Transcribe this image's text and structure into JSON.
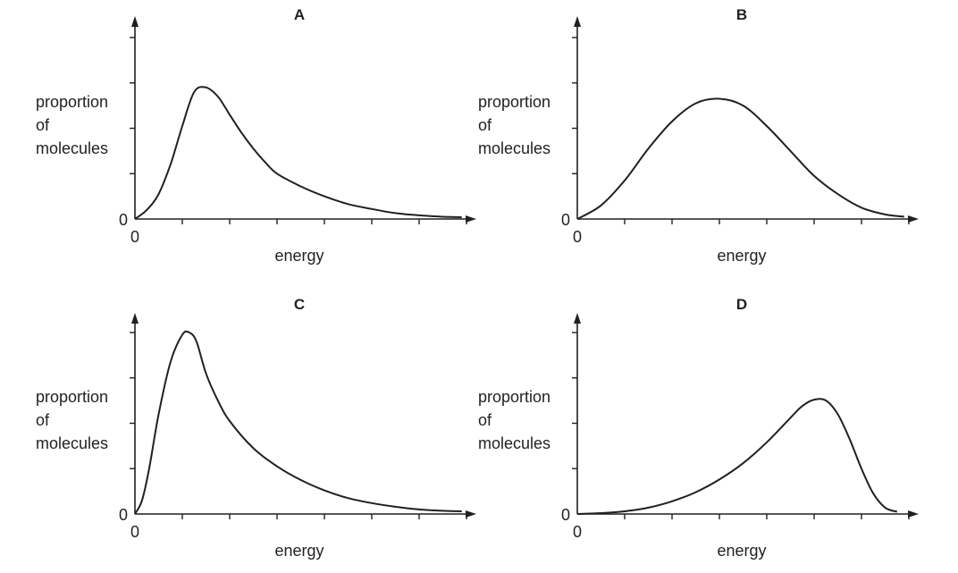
{
  "chart_data": [
    {
      "type": "line",
      "title": "A",
      "xlabel": "energy",
      "ylabel": [
        "proportion",
        "of",
        "molecules"
      ],
      "x_origin_label": "0",
      "y_origin_label": "0",
      "xlim": [
        0,
        7
      ],
      "ylim": [
        0,
        4
      ],
      "x_ticks": 7,
      "y_ticks": 4,
      "grid": false,
      "x": [
        0,
        0.25,
        0.5,
        0.75,
        1.0,
        1.25,
        1.5,
        1.75,
        2.0,
        2.25,
        2.5,
        2.75,
        3.0,
        3.5,
        4.0,
        4.5,
        5.0,
        5.5,
        6.0,
        6.5,
        6.9
      ],
      "y": [
        0,
        0.2,
        0.55,
        1.2,
        2.05,
        2.8,
        2.9,
        2.7,
        2.3,
        1.9,
        1.55,
        1.25,
        1.0,
        0.72,
        0.5,
        0.33,
        0.22,
        0.13,
        0.08,
        0.05,
        0.04
      ]
    },
    {
      "type": "line",
      "title": "B",
      "xlabel": "energy",
      "ylabel": [
        "proportion",
        "of",
        "molecules"
      ],
      "x_origin_label": "0",
      "y_origin_label": "0",
      "xlim": [
        0,
        7
      ],
      "ylim": [
        0,
        4
      ],
      "x_ticks": 7,
      "y_ticks": 4,
      "grid": false,
      "x": [
        0,
        0.5,
        1.0,
        1.5,
        2.0,
        2.5,
        3.0,
        3.5,
        4.0,
        4.5,
        5.0,
        5.5,
        6.0,
        6.5,
        6.9
      ],
      "y": [
        0,
        0.3,
        0.85,
        1.55,
        2.15,
        2.55,
        2.65,
        2.5,
        2.05,
        1.5,
        0.95,
        0.55,
        0.25,
        0.1,
        0.05
      ]
    },
    {
      "type": "line",
      "title": "C",
      "xlabel": "energy",
      "ylabel": [
        "proportion",
        "of",
        "molecules"
      ],
      "x_origin_label": "0",
      "y_origin_label": "0",
      "xlim": [
        0,
        7
      ],
      "ylim": [
        0,
        4
      ],
      "x_ticks": 7,
      "y_ticks": 4,
      "grid": false,
      "x": [
        0,
        0.15,
        0.3,
        0.5,
        0.75,
        1.0,
        1.15,
        1.3,
        1.5,
        1.75,
        2.0,
        2.5,
        3.0,
        3.5,
        4.0,
        4.5,
        5.0,
        5.5,
        6.0,
        6.5,
        6.9
      ],
      "y": [
        0,
        0.3,
        1.0,
        2.2,
        3.35,
        3.95,
        4.0,
        3.8,
        3.1,
        2.5,
        2.05,
        1.45,
        1.05,
        0.75,
        0.52,
        0.35,
        0.24,
        0.16,
        0.1,
        0.07,
        0.06
      ]
    },
    {
      "type": "line",
      "title": "D",
      "xlabel": "energy",
      "ylabel": [
        "proportion",
        "of",
        "molecules"
      ],
      "x_origin_label": "0",
      "y_origin_label": "0",
      "xlim": [
        0,
        7
      ],
      "ylim": [
        0,
        4
      ],
      "x_ticks": 7,
      "y_ticks": 4,
      "grid": false,
      "x": [
        0,
        0.5,
        1.0,
        1.5,
        2.0,
        2.5,
        3.0,
        3.5,
        4.0,
        4.5,
        4.75,
        5.0,
        5.25,
        5.5,
        5.75,
        6.0,
        6.25,
        6.5,
        6.75
      ],
      "y": [
        0,
        0.02,
        0.06,
        0.14,
        0.28,
        0.48,
        0.76,
        1.12,
        1.58,
        2.12,
        2.38,
        2.52,
        2.5,
        2.2,
        1.65,
        1.0,
        0.45,
        0.14,
        0.05
      ]
    }
  ]
}
